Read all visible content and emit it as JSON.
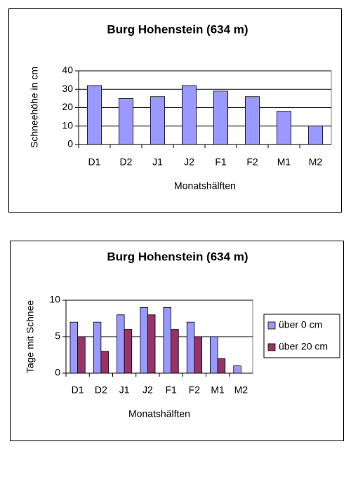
{
  "chart_data": [
    {
      "type": "bar",
      "title": "Burg Hohenstein (634 m)",
      "x_label": "Monatshälften",
      "y_label": "Schneehöhe in cm",
      "categories": [
        "D1",
        "D2",
        "J1",
        "J2",
        "F1",
        "F2",
        "M1",
        "M2"
      ],
      "values": [
        32,
        25,
        26,
        32,
        29,
        26,
        18,
        10
      ],
      "color": "#9999ff",
      "ylim": [
        0,
        40
      ],
      "yticks": [
        0,
        10,
        20,
        30,
        40
      ],
      "grid": true
    },
    {
      "type": "bar",
      "title": "Burg Hohenstein (634 m)",
      "x_label": "Monatshälften",
      "y_label": "Tage mit Schnee",
      "categories": [
        "D1",
        "D2",
        "J1",
        "J2",
        "F1",
        "F2",
        "M1",
        "M2"
      ],
      "series": [
        {
          "name": "über 0 cm",
          "color": "#9999ff",
          "values": [
            7,
            7,
            8,
            9,
            9,
            7,
            5,
            1
          ]
        },
        {
          "name": "über 20 cm",
          "color": "#993366",
          "values": [
            5,
            3,
            6,
            8,
            6,
            5,
            2,
            0
          ]
        }
      ],
      "ylim": [
        0,
        10
      ],
      "yticks": [
        0,
        5,
        10
      ],
      "grid": true,
      "legend": "right"
    }
  ]
}
